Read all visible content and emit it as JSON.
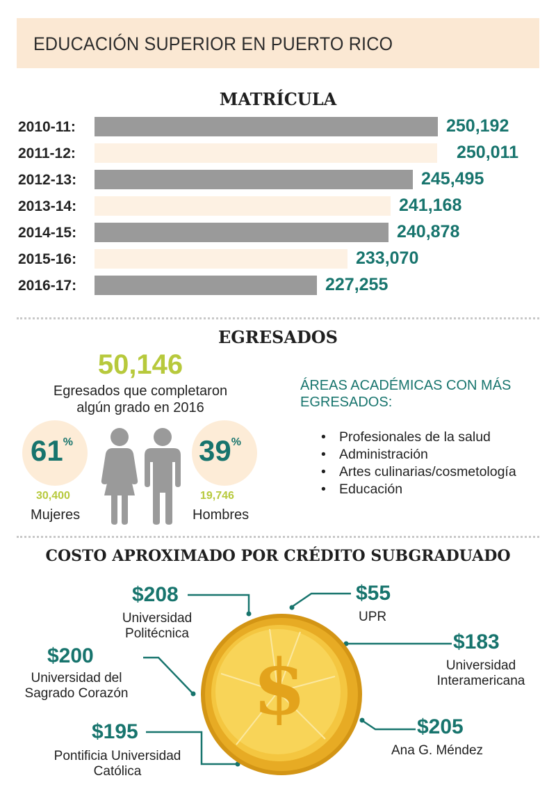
{
  "header": {
    "title": "EDUCACIÓN SUPERIOR EN PUERTO RICO"
  },
  "matricula": {
    "title": "MATRÍCULA"
  },
  "chart_data": {
    "type": "bar",
    "orientation": "horizontal",
    "title": "MATRÍCULA",
    "categories": [
      "2010-11:",
      "2011-12:",
      "2012-13:",
      "2013-14:",
      "2014-15:",
      "2015-16:",
      "2016-17:"
    ],
    "values": [
      250192,
      250011,
      245495,
      241168,
      240878,
      233070,
      227255
    ],
    "value_labels": [
      "250,192",
      "250,011",
      "245,495",
      "241,168",
      "240,878",
      "233,070",
      "227,255"
    ],
    "bar_colors": [
      "#9a9a9a",
      "#fdf1e3",
      "#9a9a9a",
      "#fdf1e3",
      "#9a9a9a",
      "#fdf1e3",
      "#9a9a9a"
    ],
    "value_color": "#17746d",
    "grid": false,
    "legend": "none"
  },
  "egresados": {
    "title": "EGRESADOS",
    "total": "50,146",
    "description_line1": "Egresados que completaron",
    "description_line2": "algún grado en 2016",
    "women": {
      "percent": "61",
      "percent_sign": "%",
      "count": "30,400",
      "label": "Mujeres"
    },
    "men": {
      "percent": "39",
      "percent_sign": "%",
      "count": "19,746",
      "label": "Hombres"
    },
    "areas_title_line1": "ÁREAS ACADÉMICAS CON MÁS",
    "areas_title_line2": "EGRESADOS:",
    "bullet": "•",
    "areas": [
      "Profesionales de la salud",
      "Administración",
      "Artes culinarias/cosmetología",
      "Educación"
    ],
    "icons": [
      "woman-icon",
      "man-icon"
    ]
  },
  "costo": {
    "title": "COSTO APROXIMADO POR CRÉDITO SUBGRADUADO",
    "coin_icon": "dollar-coin-icon",
    "institutions": [
      {
        "price": "$208",
        "name_line1": "Universidad",
        "name_line2": "Politécnica"
      },
      {
        "price": "$55",
        "name_line1": "UPR",
        "name_line2": ""
      },
      {
        "price": "$183",
        "name_line1": "Universidad",
        "name_line2": "Interamericana"
      },
      {
        "price": "$200",
        "name_line1": "Universidad del",
        "name_line2": "Sagrado Corazón"
      },
      {
        "price": "$205",
        "name_line1": "Ana G. Méndez",
        "name_line2": ""
      },
      {
        "price": "$195",
        "name_line1": "Pontificia Universidad",
        "name_line2": "Católica"
      }
    ],
    "colors": {
      "coin_outer": "#e2a51f",
      "coin_inner": "#f6c93e",
      "coin_face": "#f8d65a",
      "leader": "#17746d"
    }
  }
}
